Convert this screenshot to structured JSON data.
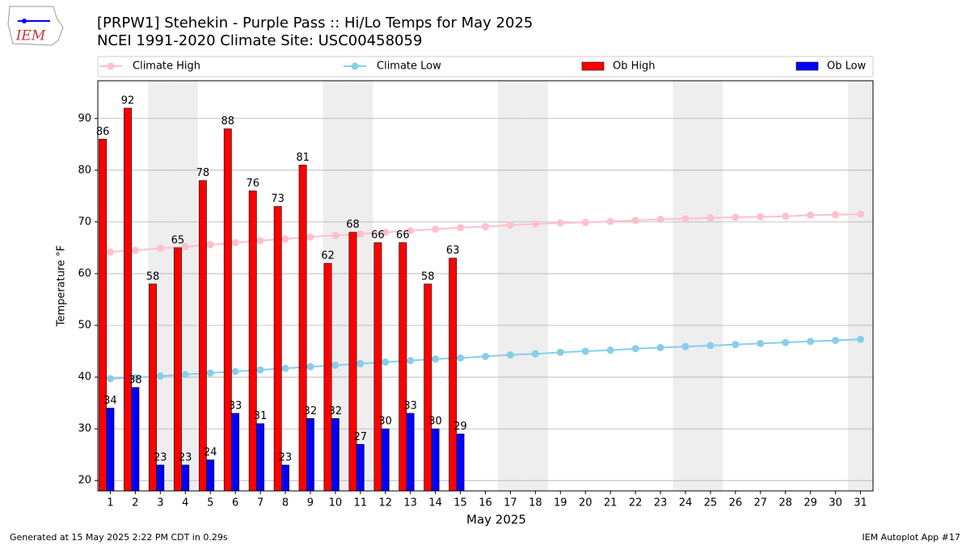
{
  "logo_text": "IEM",
  "footer_left": "Generated at 15 May 2025 2:22 PM CDT in 0.29s",
  "footer_right": "IEM Autoplot App #17",
  "chart_data": {
    "type": "bar",
    "title": "[PRPW1] Stehekin - Purple Pass :: Hi/Lo Temps for May 2025",
    "subtitle": "NCEI 1991-2020 Climate Site: USC00458059",
    "x_label": "May 2025",
    "y_label": "Temperature °F",
    "categories": [
      "1",
      "2",
      "3",
      "4",
      "5",
      "6",
      "7",
      "8",
      "9",
      "10",
      "11",
      "12",
      "13",
      "14",
      "15",
      "16",
      "17",
      "18",
      "19",
      "20",
      "21",
      "22",
      "23",
      "24",
      "25",
      "26",
      "27",
      "28",
      "29",
      "30",
      "31"
    ],
    "shaded_categories": [
      "3",
      "4",
      "10",
      "11",
      "17",
      "18",
      "24",
      "25",
      "31"
    ],
    "ylim": [
      18,
      97.3
    ],
    "yticks": [
      20,
      30,
      40,
      50,
      60,
      70,
      80,
      90
    ],
    "grid": true,
    "legend": "top",
    "series": [
      {
        "name": "Climate High",
        "type": "line",
        "color": "#ffc0cb",
        "values": [
          64.2,
          64.5,
          64.9,
          65.2,
          65.6,
          66.0,
          66.4,
          66.7,
          67.1,
          67.4,
          67.7,
          68.0,
          68.3,
          68.6,
          68.9,
          69.1,
          69.4,
          69.6,
          69.8,
          69.9,
          70.1,
          70.3,
          70.5,
          70.6,
          70.8,
          70.9,
          71.0,
          71.1,
          71.3,
          71.4,
          71.5
        ]
      },
      {
        "name": "Climate Low",
        "type": "line",
        "color": "#87ceeb",
        "values": [
          39.7,
          39.9,
          40.2,
          40.5,
          40.8,
          41.1,
          41.4,
          41.7,
          42.0,
          42.3,
          42.6,
          42.9,
          43.2,
          43.5,
          43.7,
          44.0,
          44.3,
          44.5,
          44.8,
          45.0,
          45.2,
          45.5,
          45.7,
          45.9,
          46.1,
          46.3,
          46.5,
          46.7,
          46.9,
          47.1,
          47.3
        ]
      },
      {
        "name": "Ob High",
        "type": "bar",
        "color": "#ff0000",
        "values": [
          86,
          92,
          58,
          65,
          78,
          88,
          76,
          73,
          81,
          62,
          68,
          66,
          66,
          58,
          63,
          null,
          null,
          null,
          null,
          null,
          null,
          null,
          null,
          null,
          null,
          null,
          null,
          null,
          null,
          null,
          null
        ]
      },
      {
        "name": "Ob Low",
        "type": "bar",
        "color": "#0000ff",
        "values": [
          34,
          38,
          23,
          23,
          24,
          33,
          31,
          23,
          32,
          32,
          27,
          30,
          33,
          30,
          29,
          null,
          null,
          null,
          null,
          null,
          null,
          null,
          null,
          null,
          null,
          null,
          null,
          null,
          null,
          null,
          null
        ]
      }
    ]
  }
}
